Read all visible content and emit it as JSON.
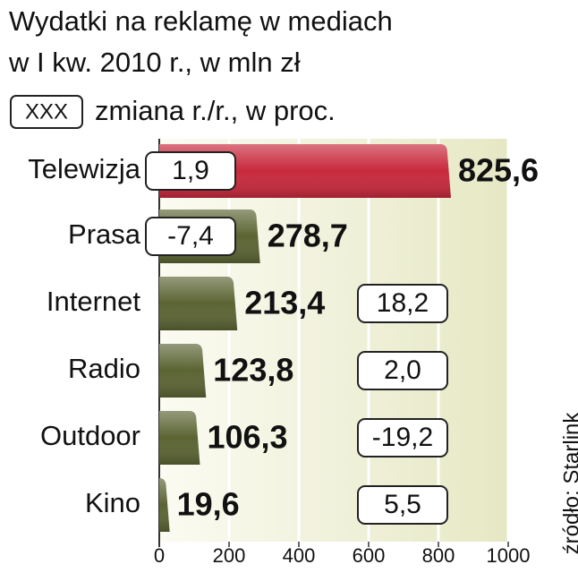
{
  "chart_data": {
    "type": "bar",
    "orientation": "horizontal",
    "title": "Wydatki na reklamę w mediach",
    "subtitle": "w I kw. 2010 r., w mln zł",
    "legend_box": "XXX",
    "legend_text": "zmiana r./r., w proc.",
    "categories": [
      "Telewizja",
      "Prasa",
      "Internet",
      "Radio",
      "Outdoor",
      "Kino"
    ],
    "values": [
      825.6,
      278.7,
      213.4,
      123.8,
      106.3,
      19.6
    ],
    "value_labels": [
      "825,6",
      "278,7",
      "213,4",
      "123,8",
      "106,3",
      "19,6"
    ],
    "change_labels": [
      "1,9",
      "-7,4",
      "18,2",
      "2,0",
      "-19,2",
      "5,5"
    ],
    "colors": [
      "#c8283c",
      "#5b6433",
      "#5b6433",
      "#5b6433",
      "#5b6433",
      "#5b6433"
    ],
    "label_colors": [
      "#c8102e",
      "#111111",
      "#111111",
      "#111111",
      "#111111",
      "#111111"
    ],
    "xlim": [
      0,
      1000
    ],
    "xticks": [
      0,
      200,
      400,
      600,
      800,
      1000
    ],
    "grid": true,
    "source": "źródło: Starlink"
  }
}
